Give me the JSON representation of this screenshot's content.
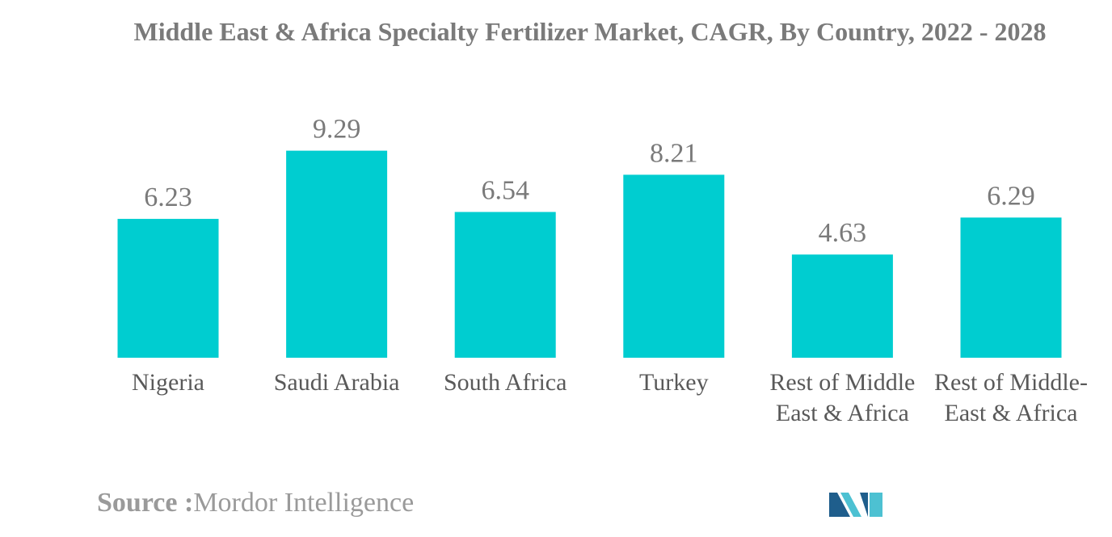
{
  "chart_data": {
    "type": "bar",
    "title": "Middle East & Africa Specialty Fertilizer Market, CAGR, By Country, 2022 - 2028",
    "categories": [
      "Nigeria",
      "Saudi Arabia",
      "South Africa",
      "Turkey",
      "Rest of Middle East & Africa",
      "Rest of Middle-East & Africa"
    ],
    "values": [
      6.23,
      9.29,
      6.54,
      8.21,
      4.63,
      6.29
    ],
    "value_labels": [
      "6.23",
      "9.29",
      "6.54",
      "8.21",
      "4.63",
      "6.29"
    ],
    "xlabel": "",
    "ylabel": "",
    "ylim": [
      0,
      10
    ],
    "grid": false,
    "bar_color": "#00CDD0"
  },
  "source": {
    "label": "Source :",
    "value": "Mordor Intelligence"
  },
  "colors": {
    "bar": "#00CDD0",
    "logo_dark": "#1F5E8C",
    "logo_light": "#4DC1D2"
  }
}
